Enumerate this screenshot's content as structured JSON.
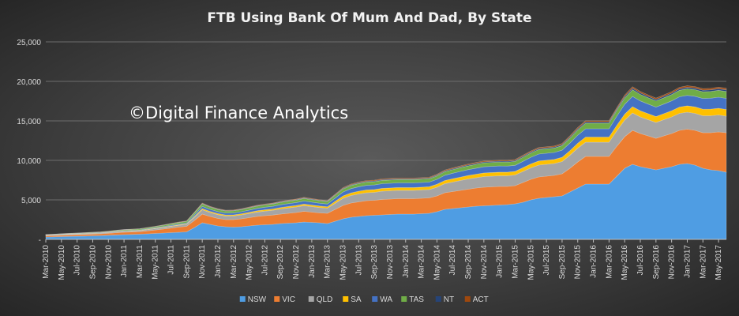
{
  "chart_data": {
    "type": "area",
    "title": "FTB Using Bank Of Mum And Dad, By State",
    "annotation": "©Digital Finance Analytics",
    "ylim": [
      0,
      25000
    ],
    "yticks": [
      "-",
      "5,000",
      "10,000",
      "15,000",
      "20,000",
      "25,000"
    ],
    "grid": true,
    "legend_position": "bottom",
    "stacked": true,
    "x": [
      "Mar-2010",
      "Apr-2010",
      "May-2010",
      "Jun-2010",
      "Jul-2010",
      "Aug-2010",
      "Sep-2010",
      "Oct-2010",
      "Nov-2010",
      "Dec-2010",
      "Jan-2011",
      "Feb-2011",
      "Mar-2011",
      "Apr-2011",
      "May-2011",
      "Jun-2011",
      "Jul-2011",
      "Aug-2011",
      "Sep-2011",
      "Oct-2011",
      "Nov-2011",
      "Dec-2011",
      "Jan-2012",
      "Feb-2012",
      "Mar-2012",
      "Apr-2012",
      "May-2012",
      "Jun-2012",
      "Jul-2012",
      "Aug-2012",
      "Sep-2012",
      "Oct-2012",
      "Nov-2012",
      "Dec-2012",
      "Jan-2013",
      "Feb-2013",
      "Mar-2013",
      "Apr-2013",
      "May-2013",
      "Jun-2013",
      "Jul-2013",
      "Aug-2013",
      "Sep-2013",
      "Oct-2013",
      "Nov-2013",
      "Dec-2013",
      "Jan-2014",
      "Feb-2014",
      "Mar-2014",
      "Apr-2014",
      "May-2014",
      "Jun-2014",
      "Jul-2014",
      "Aug-2014",
      "Sep-2014",
      "Oct-2014",
      "Nov-2014",
      "Dec-2014",
      "Jan-2015",
      "Feb-2015",
      "Mar-2015",
      "Apr-2015",
      "May-2015",
      "Jun-2015",
      "Jul-2015",
      "Aug-2015",
      "Sep-2015",
      "Oct-2015",
      "Nov-2015",
      "Dec-2015",
      "Jan-2016",
      "Feb-2016",
      "Mar-2016",
      "Apr-2016",
      "May-2016",
      "Jun-2016",
      "Jul-2016",
      "Aug-2016",
      "Sep-2016",
      "Oct-2016",
      "Nov-2016",
      "Dec-2016",
      "Jan-2017",
      "Feb-2017",
      "Mar-2017",
      "Apr-2017",
      "May-2017",
      "Jun-2017"
    ],
    "xtick_labels": [
      "Mar-2010",
      "May-2010",
      "Jul-2010",
      "Sep-2010",
      "Nov-2010",
      "Jan-2011",
      "Mar-2011",
      "May-2011",
      "Jul-2011",
      "Sep-2011",
      "Nov-2011",
      "Jan-2012",
      "Mar-2012",
      "May-2012",
      "Jul-2012",
      "Sep-2012",
      "Nov-2012",
      "Jan-2013",
      "Mar-2013",
      "May-2013",
      "Jul-2013",
      "Sep-2013",
      "Nov-2013",
      "Jan-2014",
      "Mar-2014",
      "May-2014",
      "Jul-2014",
      "Sep-2014",
      "Nov-2014",
      "Jan-2015",
      "Mar-2015",
      "May-2015",
      "Jul-2015",
      "Sep-2015",
      "Nov-2015",
      "Jan-2016",
      "Mar-2016",
      "May-2016",
      "Jul-2016",
      "Sep-2016",
      "Nov-2016",
      "Jan-2017",
      "Mar-2017",
      "May-2017"
    ],
    "series": [
      {
        "name": "NSW",
        "color": "#4f9de3",
        "values": [
          300,
          320,
          350,
          380,
          400,
          420,
          450,
          480,
          520,
          560,
          600,
          620,
          650,
          700,
          750,
          800,
          850,
          900,
          950,
          1500,
          2100,
          1900,
          1700,
          1600,
          1550,
          1600,
          1700,
          1800,
          1850,
          1900,
          2000,
          2050,
          2100,
          2200,
          2150,
          2100,
          2000,
          2300,
          2600,
          2800,
          2900,
          3000,
          3050,
          3100,
          3150,
          3200,
          3200,
          3200,
          3250,
          3300,
          3500,
          3800,
          3900,
          4000,
          4100,
          4200,
          4250,
          4300,
          4350,
          4400,
          4500,
          4700,
          5000,
          5200,
          5300,
          5400,
          5500,
          6000,
          6500,
          7000,
          7000,
          7000,
          7000,
          8000,
          9000,
          9500,
          9200,
          9000,
          8800,
          9000,
          9200,
          9500,
          9600,
          9400,
          9000,
          8800,
          8700,
          8500
        ]
      },
      {
        "name": "VIC",
        "color": "#ed7d31",
        "values": [
          150,
          160,
          170,
          180,
          190,
          200,
          210,
          220,
          250,
          280,
          300,
          310,
          320,
          380,
          440,
          500,
          580,
          650,
          700,
          900,
          1100,
          1000,
          950,
          900,
          950,
          1000,
          1050,
          1100,
          1150,
          1180,
          1200,
          1250,
          1300,
          1350,
          1300,
          1250,
          1300,
          1500,
          1700,
          1800,
          1850,
          1900,
          1900,
          1950,
          1950,
          1950,
          1950,
          1950,
          1950,
          1950,
          2000,
          2100,
          2150,
          2200,
          2250,
          2300,
          2350,
          2350,
          2350,
          2300,
          2300,
          2500,
          2600,
          2700,
          2700,
          2700,
          2800,
          3000,
          3300,
          3500,
          3500,
          3500,
          3500,
          3800,
          4000,
          4300,
          4200,
          4100,
          4000,
          4100,
          4200,
          4300,
          4350,
          4400,
          4500,
          4700,
          4900,
          5000
        ]
      },
      {
        "name": "QLD",
        "color": "#a5a5a5",
        "values": [
          60,
          65,
          70,
          75,
          80,
          85,
          90,
          95,
          100,
          110,
          120,
          125,
          130,
          150,
          170,
          190,
          210,
          230,
          250,
          400,
          550,
          500,
          480,
          460,
          470,
          500,
          530,
          560,
          580,
          600,
          650,
          680,
          700,
          720,
          700,
          680,
          650,
          780,
          900,
          950,
          1000,
          1000,
          1000,
          1050,
          1050,
          1050,
          1050,
          1050,
          1050,
          1050,
          1100,
          1150,
          1200,
          1250,
          1300,
          1300,
          1350,
          1350,
          1350,
          1350,
          1350,
          1400,
          1450,
          1500,
          1500,
          1500,
          1550,
          1650,
          1750,
          1800,
          1800,
          1800,
          1800,
          1950,
          2100,
          2200,
          2100,
          2050,
          2000,
          2050,
          2100,
          2150,
          2150,
          2150,
          2150,
          2150,
          2150,
          2100
        ]
      },
      {
        "name": "SA",
        "color": "#ffc000",
        "values": [
          20,
          22,
          24,
          26,
          28,
          30,
          32,
          34,
          36,
          38,
          40,
          42,
          44,
          48,
          52,
          56,
          60,
          65,
          70,
          110,
          150,
          140,
          135,
          130,
          135,
          140,
          150,
          160,
          165,
          170,
          180,
          185,
          190,
          200,
          195,
          190,
          180,
          240,
          300,
          330,
          350,
          360,
          360,
          360,
          360,
          360,
          360,
          360,
          360,
          360,
          380,
          400,
          420,
          430,
          440,
          450,
          460,
          460,
          460,
          460,
          460,
          480,
          500,
          520,
          520,
          520,
          540,
          580,
          620,
          650,
          650,
          650,
          650,
          700,
          750,
          800,
          780,
          760,
          750,
          760,
          780,
          800,
          810,
          820,
          830,
          840,
          850,
          850
        ]
      },
      {
        "name": "WA",
        "color": "#4472c4",
        "values": [
          30,
          32,
          34,
          36,
          38,
          40,
          42,
          44,
          48,
          52,
          56,
          58,
          60,
          65,
          70,
          80,
          90,
          100,
          110,
          200,
          280,
          260,
          250,
          240,
          250,
          260,
          280,
          300,
          320,
          330,
          350,
          360,
          370,
          380,
          370,
          360,
          350,
          420,
          500,
          540,
          560,
          580,
          580,
          590,
          590,
          590,
          590,
          590,
          590,
          590,
          620,
          660,
          700,
          720,
          740,
          760,
          780,
          780,
          780,
          770,
          760,
          800,
          840,
          880,
          880,
          880,
          900,
          960,
          1020,
          1050,
          1050,
          1050,
          1050,
          1150,
          1250,
          1300,
          1250,
          1220,
          1200,
          1220,
          1250,
          1300,
          1320,
          1340,
          1360,
          1380,
          1400,
          1400
        ]
      },
      {
        "name": "TAS",
        "color": "#70ad47",
        "values": [
          40,
          42,
          44,
          46,
          48,
          50,
          52,
          54,
          60,
          80,
          100,
          105,
          110,
          120,
          130,
          150,
          170,
          190,
          200,
          250,
          300,
          280,
          270,
          260,
          260,
          265,
          270,
          280,
          285,
          290,
          300,
          305,
          310,
          320,
          315,
          310,
          300,
          340,
          380,
          400,
          410,
          420,
          420,
          420,
          420,
          420,
          420,
          420,
          420,
          420,
          430,
          450,
          460,
          470,
          480,
          490,
          500,
          500,
          500,
          500,
          500,
          520,
          540,
          560,
          560,
          560,
          580,
          620,
          660,
          700,
          700,
          700,
          700,
          750,
          800,
          850,
          820,
          800,
          780,
          790,
          800,
          820,
          830,
          840,
          850,
          860,
          870,
          870
        ]
      },
      {
        "name": "NT",
        "color": "#264478",
        "values": [
          10,
          10,
          11,
          12,
          13,
          14,
          15,
          16,
          17,
          18,
          19,
          20,
          21,
          22,
          24,
          26,
          28,
          30,
          32,
          45,
          60,
          55,
          52,
          50,
          52,
          55,
          58,
          60,
          62,
          64,
          66,
          68,
          70,
          72,
          70,
          68,
          66,
          75,
          85,
          90,
          92,
          95,
          95,
          96,
          96,
          96,
          96,
          96,
          96,
          96,
          100,
          105,
          110,
          112,
          114,
          116,
          118,
          118,
          118,
          118,
          118,
          122,
          126,
          130,
          130,
          130,
          135,
          145,
          155,
          160,
          160,
          160,
          160,
          170,
          180,
          190,
          185,
          180,
          178,
          180,
          185,
          190,
          192,
          194,
          196,
          198,
          200,
          200
        ]
      },
      {
        "name": "ACT",
        "color": "#9e480e",
        "values": [
          10,
          10,
          11,
          12,
          13,
          14,
          15,
          16,
          17,
          18,
          19,
          20,
          21,
          22,
          24,
          26,
          28,
          30,
          32,
          45,
          60,
          55,
          52,
          50,
          52,
          55,
          58,
          60,
          62,
          64,
          66,
          68,
          70,
          72,
          70,
          68,
          66,
          75,
          85,
          90,
          92,
          95,
          95,
          96,
          96,
          96,
          96,
          96,
          96,
          96,
          100,
          105,
          110,
          112,
          114,
          116,
          118,
          118,
          118,
          118,
          118,
          122,
          126,
          130,
          130,
          130,
          135,
          145,
          155,
          160,
          160,
          160,
          160,
          170,
          180,
          190,
          185,
          180,
          178,
          180,
          185,
          190,
          192,
          194,
          196,
          198,
          200,
          200
        ]
      }
    ]
  }
}
